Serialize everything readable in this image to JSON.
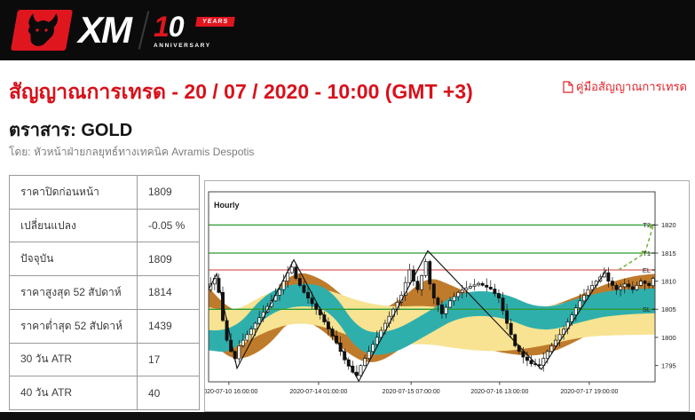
{
  "header": {
    "logo": {
      "xm": "XM",
      "ten_1": "1",
      "ten_0": "0",
      "years": "YEARS",
      "anniversary": "ANNIVERSARY"
    },
    "brand_red": "#e0161f"
  },
  "title": {
    "text": "สัญญาณการเทรด - 20 / 07 / 2020 - 10:00 (GMT +3)",
    "color": "#d8111b"
  },
  "manual_link": {
    "label": "คู่มือสัญญาณการเทรด"
  },
  "instrument": {
    "label": "ตราสาร: GOLD"
  },
  "byline": "โดย: หัวหน้าฝ่ายกลยุทธ์ทางเทคนิค Avramis Despotis",
  "stats_table": {
    "rows": [
      {
        "label": "ราคาปิดก่อนหน้า",
        "value": "1809"
      },
      {
        "label": "เปลี่ยนแปลง",
        "value": "-0.05 %"
      },
      {
        "label": "ปัจจุบัน",
        "value": "1809"
      },
      {
        "label": "ราคาสูงสุด 52 สัปดาห์",
        "value": "1814"
      },
      {
        "label": "ราคาต่ำสุด 52 สัปดาห์",
        "value": "1439"
      },
      {
        "label": "30 วัน ATR",
        "value": "17"
      },
      {
        "label": "40 วัน ATR",
        "value": "40"
      }
    ]
  },
  "chart_data": {
    "type": "candlestick",
    "timeframe_label": "Hourly",
    "instrument": "GOLD",
    "ylim": [
      1791.5,
      1826
    ],
    "y_ticks": [
      1820,
      1815,
      1810,
      1805,
      1800,
      1795
    ],
    "x_ticks": [
      {
        "i": 5.0,
        "label": "2020-07-10 16:00:00"
      },
      {
        "i": 27.1,
        "label": "2020-07-14 01:00:00"
      },
      {
        "i": 49.9,
        "label": "2020-07-15 07:00:00"
      },
      {
        "i": 71.7,
        "label": "2020-07-16 13:00:00"
      },
      {
        "i": 93.8,
        "label": "2020-07-17 19:00:00"
      }
    ],
    "levels": [
      {
        "name": "T2",
        "price": 1820,
        "line_color": "#2f9a33"
      },
      {
        "name": "T1",
        "price": 1815,
        "line_color": "#2f9a33"
      },
      {
        "name": "EL",
        "price": 1812,
        "line_color": "#dd5f5f"
      },
      {
        "name": "SL",
        "price": 1805,
        "line_color": "#2f9a33"
      }
    ],
    "n_candles": 110,
    "price_path": [
      [
        0,
        1808.5
      ],
      [
        1,
        1809.5
      ],
      [
        2,
        1810.5
      ],
      [
        3,
        1808
      ],
      [
        4,
        1803
      ],
      [
        5,
        1799.5
      ],
      [
        6,
        1797.5
      ],
      [
        7,
        1796.2
      ],
      [
        8,
        1798.5
      ],
      [
        10,
        1800.5
      ],
      [
        12,
        1802.5
      ],
      [
        14,
        1804.5
      ],
      [
        16,
        1806.5
      ],
      [
        18,
        1808.5
      ],
      [
        20,
        1811.5
      ],
      [
        21,
        1812.5
      ],
      [
        22,
        1810.5
      ],
      [
        24,
        1808
      ],
      [
        26,
        1806
      ],
      [
        28,
        1804
      ],
      [
        30,
        1801.5
      ],
      [
        32,
        1799
      ],
      [
        34,
        1796
      ],
      [
        36,
        1793.8
      ],
      [
        37,
        1793.2
      ],
      [
        38,
        1795
      ],
      [
        40,
        1797.5
      ],
      [
        42,
        1800
      ],
      [
        44,
        1802.5
      ],
      [
        46,
        1805
      ],
      [
        48,
        1807.5
      ],
      [
        50,
        1812
      ],
      [
        51,
        1810
      ],
      [
        52,
        1808.5
      ],
      [
        53,
        1811
      ],
      [
        54,
        1813.5
      ],
      [
        55,
        1809.5
      ],
      [
        56,
        1807
      ],
      [
        57,
        1805.8
      ],
      [
        58,
        1804.2
      ],
      [
        60,
        1806.5
      ],
      [
        62,
        1808
      ],
      [
        64,
        1808.8
      ],
      [
        67,
        1809.6
      ],
      [
        70,
        1808.6
      ],
      [
        72,
        1807
      ],
      [
        74,
        1802.5
      ],
      [
        76,
        1798.5
      ],
      [
        78,
        1796.5
      ],
      [
        80,
        1795.3
      ],
      [
        82,
        1795
      ],
      [
        84,
        1797.5
      ],
      [
        86,
        1799.5
      ],
      [
        88,
        1801.5
      ],
      [
        90,
        1804
      ],
      [
        92,
        1806.5
      ],
      [
        94,
        1808.5
      ],
      [
        96,
        1810
      ],
      [
        98,
        1811.5
      ],
      [
        99,
        1810
      ],
      [
        101,
        1808.5
      ],
      [
        103,
        1809.5
      ],
      [
        105,
        1808.5
      ],
      [
        107,
        1810
      ],
      [
        109,
        1809.2
      ],
      [
        110,
        1810.5
      ]
    ],
    "zigzag": [
      [
        0,
        1808.5
      ],
      [
        2,
        1811.3
      ],
      [
        7,
        1794.5
      ],
      [
        21,
        1813.8
      ],
      [
        37,
        1792.2
      ],
      [
        54,
        1815.4
      ],
      [
        82,
        1794.3
      ],
      [
        98,
        1812
      ]
    ],
    "bands": [
      {
        "name": "outer-band",
        "color": "#bf7b2c",
        "points": [
          [
            0,
            1804.5,
            4.5
          ],
          [
            6,
            1799.5,
            4.0
          ],
          [
            14,
            1802,
            4.2
          ],
          [
            21,
            1808,
            4.0
          ],
          [
            28,
            1806,
            4.5
          ],
          [
            34,
            1802,
            4.8
          ],
          [
            40,
            1799.5,
            4.5
          ],
          [
            47,
            1802,
            4.5
          ],
          [
            54,
            1807,
            4.0
          ],
          [
            60,
            1805,
            4.2
          ],
          [
            66,
            1802.8,
            4.5
          ],
          [
            74,
            1801.5,
            4.5
          ],
          [
            82,
            1800.8,
            4.2
          ],
          [
            90,
            1803,
            4.0
          ],
          [
            98,
            1806,
            3.6
          ],
          [
            105,
            1808,
            3.0
          ],
          [
            110,
            1808.5,
            2.8
          ]
        ]
      },
      {
        "name": "inner-band",
        "color": "#f7e391",
        "points": [
          [
            0,
            1802,
            3.4
          ],
          [
            6,
            1801,
            3.2
          ],
          [
            14,
            1804.5,
            3.4
          ],
          [
            22,
            1806,
            3.2
          ],
          [
            30,
            1805,
            3.4
          ],
          [
            37,
            1803,
            3.4
          ],
          [
            45,
            1802,
            3.4
          ],
          [
            54,
            1802.3,
            3.4
          ],
          [
            62,
            1801.3,
            3.4
          ],
          [
            72,
            1800.8,
            3.4
          ],
          [
            82,
            1801.8,
            3.4
          ],
          [
            92,
            1803.5,
            3.4
          ],
          [
            100,
            1804,
            3.6
          ],
          [
            110,
            1804.3,
            3.8
          ]
        ]
      },
      {
        "name": "mid-band",
        "color": "#2fafac",
        "points": [
          [
            0,
            1799.5,
            1.8
          ],
          [
            6,
            1799,
            1.8
          ],
          [
            14,
            1806,
            2.0
          ],
          [
            22,
            1807.8,
            2.0
          ],
          [
            30,
            1807,
            2.0
          ],
          [
            37,
            1799,
            2.0
          ],
          [
            45,
            1798.8,
            2.0
          ],
          [
            54,
            1802.5,
            2.0
          ],
          [
            62,
            1806,
            2.2
          ],
          [
            72,
            1806,
            2.2
          ],
          [
            82,
            1802.8,
            2.0
          ],
          [
            92,
            1805,
            2.2
          ],
          [
            100,
            1806.3,
            2.2
          ],
          [
            110,
            1806.5,
            2.2
          ]
        ]
      }
    ],
    "forecast_arrow": {
      "color": "#7cb342",
      "from_price": 1812,
      "to_prices": [
        1815,
        1820
      ]
    },
    "colors": {
      "candle_up": "#ffffff",
      "candle_down": "#111111",
      "zigzag": "#111111",
      "axis": "#444444"
    }
  }
}
